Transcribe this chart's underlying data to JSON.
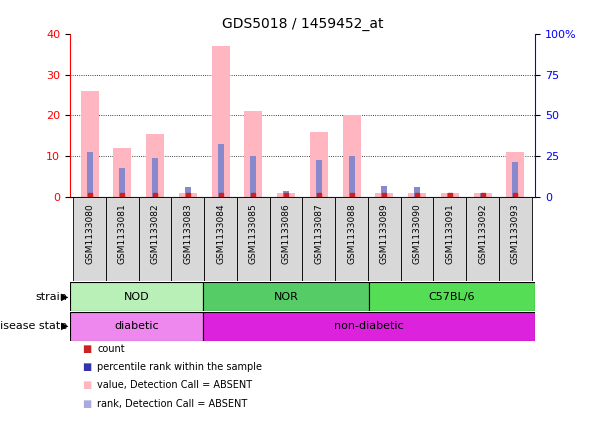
{
  "title": "GDS5018 / 1459452_at",
  "samples": [
    "GSM1133080",
    "GSM1133081",
    "GSM1133082",
    "GSM1133083",
    "GSM1133084",
    "GSM1133085",
    "GSM1133086",
    "GSM1133087",
    "GSM1133088",
    "GSM1133089",
    "GSM1133090",
    "GSM1133091",
    "GSM1133092",
    "GSM1133093"
  ],
  "pink_bars": [
    26,
    12,
    15.5,
    1,
    37,
    21,
    1,
    16,
    20,
    1,
    1,
    1,
    1,
    11
  ],
  "blue_bars": [
    11,
    7,
    9.5,
    2.5,
    13,
    10,
    1.3,
    9,
    10,
    2.7,
    2.5,
    1,
    1,
    8.5
  ],
  "ylim_left": [
    0,
    40
  ],
  "ylim_right": [
    0,
    100
  ],
  "yticks_left": [
    0,
    10,
    20,
    30,
    40
  ],
  "yticks_right": [
    0,
    25,
    50,
    75,
    100
  ],
  "ytick_labels_right": [
    "0",
    "25",
    "50",
    "75",
    "100%"
  ],
  "strain_groups": [
    {
      "label": "NOD",
      "start": 0,
      "end": 4,
      "color": "#b8f0b8"
    },
    {
      "label": "NOR",
      "start": 4,
      "end": 9,
      "color": "#44cc66"
    },
    {
      "label": "C57BL/6",
      "start": 9,
      "end": 14,
      "color": "#44dd44"
    }
  ],
  "disease_groups": [
    {
      "label": "diabetic",
      "start": 0,
      "end": 4,
      "color": "#ee88ee"
    },
    {
      "label": "non-diabetic",
      "start": 4,
      "end": 14,
      "color": "#cc44cc"
    }
  ],
  "pink_color": "#ffb6c1",
  "blue_color": "#8888cc",
  "red_color": "#cc2222",
  "dark_blue": "#3333aa",
  "bg_color": "#ffffff",
  "plot_bg": "#ffffff",
  "grid_color": "black",
  "cell_bg": "#d8d8d8",
  "legend_labels": [
    "count",
    "percentile rank within the sample",
    "value, Detection Call = ABSENT",
    "rank, Detection Call = ABSENT"
  ],
  "legend_colors": [
    "#cc2222",
    "#3333aa",
    "#ffb6c1",
    "#aaaadd"
  ]
}
